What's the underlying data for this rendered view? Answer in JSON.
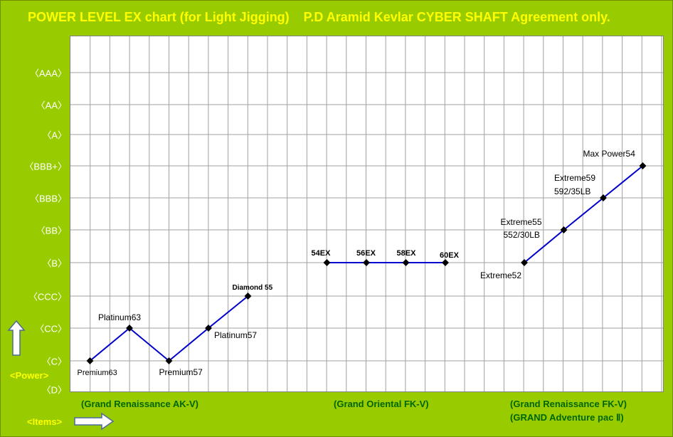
{
  "title": "POWER LEVEL EX chart (for Light Jigging)    P.D Aramid Kevlar CYBER SHAFT Agreement only.",
  "power_label": "<Power>",
  "items_label": "<Items>",
  "colors": {
    "background": "#99cc00",
    "title": "#ffff00",
    "line": "#0000cc",
    "group_label": "#006600",
    "grid": "#a0a0a0"
  },
  "groups": [
    {
      "label": "(Grand Renaissance AK-V)"
    },
    {
      "label": "(Grand Oriental FK-V)"
    },
    {
      "label": "(Grand Renaissance FK-V)",
      "label2": "(GRAND Adventure pac Ⅱ)"
    }
  ],
  "chart_data": {
    "type": "line",
    "title": "POWER LEVEL EX chart (for Light Jigging)    P.D Aramid Kevlar CYBER SHAFT Agreement only.",
    "ylabel": "<Power>",
    "xlabel": "<Items>",
    "y_categories": [
      "〈D〉",
      "〈C〉",
      "〈CC〉",
      "〈CCC〉",
      "〈B〉",
      "〈BB〉",
      "〈BBB〉",
      "〈BBB+〉",
      "〈A〉",
      "〈AA〉",
      "〈AAA〉"
    ],
    "grid": true,
    "series": [
      {
        "group": "(Grand Renaissance AK-V)",
        "points": [
          {
            "x": 1,
            "y": "〈C〉",
            "label": "Premium63"
          },
          {
            "x": 2,
            "y": "〈CC〉",
            "label": "Platinum63"
          },
          {
            "x": 3,
            "y": "〈C〉",
            "label": "Premium57"
          },
          {
            "x": 4,
            "y": "〈CC〉",
            "label": "Platinum57"
          },
          {
            "x": 5,
            "y": "〈CCC〉",
            "label": "Diamond 55"
          }
        ]
      },
      {
        "group": "(Grand Oriental FK-V)",
        "points": [
          {
            "x": 7,
            "y": "〈B〉",
            "label": "54EX"
          },
          {
            "x": 8,
            "y": "〈B〉",
            "label": "56EX"
          },
          {
            "x": 9,
            "y": "〈B〉",
            "label": "58EX"
          },
          {
            "x": 10,
            "y": "〈B〉",
            "label": "60EX"
          }
        ]
      },
      {
        "group": "(Grand Renaissance FK-V)",
        "points": [
          {
            "x": 12,
            "y": "〈B〉",
            "label": "Extreme52"
          },
          {
            "x": 13,
            "y": "〈BB〉",
            "label": "Extreme55",
            "sublabel": "552/30LB"
          },
          {
            "x": 14,
            "y": "〈BBB〉",
            "label": "Extreme59",
            "sublabel": "592/35LB"
          },
          {
            "x": 15,
            "y": "〈BBB+〉",
            "label": "Max Power54"
          }
        ]
      }
    ]
  }
}
